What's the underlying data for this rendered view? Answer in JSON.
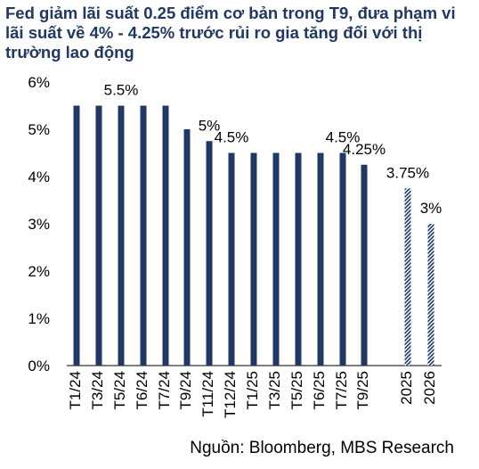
{
  "title": "Fed giảm lãi suất 0.25 điểm cơ bản trong T9, đưa phạm vi lãi suất về 4% - 4.25% trước rủi ro gia tăng đối với thị trường lao động",
  "source": "Nguồn: Bloomberg, MBS Research",
  "colors": {
    "bar": "#1f3864",
    "text": "#1f3864",
    "axis": "#000000",
    "hatch_bg": "#ffffff"
  },
  "chart_data": {
    "type": "bar",
    "title": "Fed giảm lãi suất 0.25 điểm cơ bản trong T9, đưa phạm vi lãi suất về 4% - 4.25% trước rủi ro gia tăng đối với thị trường lao động",
    "xlabel": "",
    "ylabel": "",
    "ylim": [
      0,
      6
    ],
    "yticks": [
      "0%",
      "1%",
      "2%",
      "3%",
      "4%",
      "5%",
      "6%"
    ],
    "grid": false,
    "categories": [
      "T1/24",
      "T3/24",
      "T5/24",
      "T6/24",
      "T7/24",
      "T9/24",
      "T11/24",
      "T12/24",
      "T1/25",
      "T3/25",
      "T5/25",
      "T6/25",
      "T7/25",
      "T9/25",
      "2025",
      "2026"
    ],
    "values": [
      5.5,
      5.5,
      5.5,
      5.5,
      5.5,
      5.0,
      4.75,
      4.5,
      4.5,
      4.5,
      4.5,
      4.5,
      4.5,
      4.25,
      3.75,
      3.0
    ],
    "bar_style": [
      "solid",
      "solid",
      "solid",
      "solid",
      "solid",
      "solid",
      "solid",
      "solid",
      "solid",
      "solid",
      "solid",
      "solid",
      "solid",
      "solid",
      "hatched",
      "hatched"
    ],
    "annotations": [
      {
        "index": 2,
        "text": "5.5%"
      },
      {
        "index": 6,
        "text": "5%"
      },
      {
        "index": 7,
        "text": "4.5%"
      },
      {
        "index": 12,
        "text": "4.5%"
      },
      {
        "index": 13,
        "text": "4.25%"
      },
      {
        "index": 14,
        "text": "3.75%"
      },
      {
        "index": 15,
        "text": "3%"
      }
    ]
  }
}
